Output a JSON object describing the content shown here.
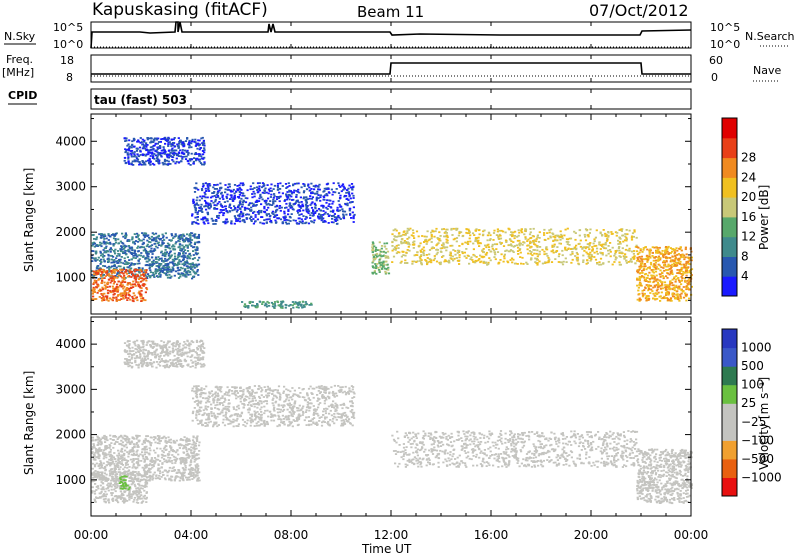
{
  "header": {
    "station": "Kapuskasing (fitACF)",
    "beam": "Beam 11",
    "date": "07/Oct/2012"
  },
  "strips": {
    "nsky_label": "N.Sky",
    "nsky_top": "10^5",
    "nsky_bottom": "10^0",
    "nsearch_label": "N.Search",
    "nsearch_top": "10^5",
    "nsearch_bottom": "10^0",
    "freq_label_1": "Freq.",
    "freq_label_2": "[MHz]",
    "freq_top": "18",
    "freq_bottom": "8",
    "nave_label": "Nave",
    "nave_top": "60",
    "nave_bottom": "0",
    "cpid_label": "CPID",
    "cpid_value": "tau (fast) 503"
  },
  "chart_data": [
    {
      "type": "heatmap",
      "title": "",
      "ylabel": "Slant Range [km]",
      "xlabel": "",
      "x_ticks": [
        "00:00",
        "04:00",
        "08:00",
        "12:00",
        "16:00",
        "20:00",
        "00:00"
      ],
      "y_ticks": [
        1000,
        2000,
        3000,
        4000
      ],
      "ylim": [
        200,
        4600
      ],
      "xlim_hours": [
        0,
        24
      ],
      "colorbar": {
        "label": "Power [dB]",
        "ticks": [
          4,
          8,
          12,
          16,
          20,
          24,
          28
        ],
        "colors": [
          "#1a1aff",
          "#2858b0",
          "#3f8a8c",
          "#57a86b",
          "#c8c878",
          "#f0c020",
          "#f08a20",
          "#e84018",
          "#e00000"
        ]
      },
      "regions": [
        {
          "name": "morning band",
          "t": [
            0.0,
            4.3
          ],
          "range_km": [
            1000,
            2000
          ],
          "power_db": 8
        },
        {
          "name": "near-range strong echoes",
          "t": [
            0.0,
            2.2
          ],
          "range_km": [
            500,
            1200
          ],
          "power_db": 28
        },
        {
          "name": "far echoes",
          "t": [
            1.3,
            4.5
          ],
          "range_km": [
            3500,
            4100
          ],
          "power_db": 4
        },
        {
          "name": "scattered mid echoes",
          "t": [
            4.0,
            10.5
          ],
          "range_km": [
            2200,
            3100
          ],
          "power_db": 4
        },
        {
          "name": "ground-level band",
          "t": [
            6.0,
            8.8
          ],
          "range_km": [
            350,
            500
          ],
          "power_db": 12
        },
        {
          "name": "pre-midday streak",
          "t": [
            11.2,
            11.9
          ],
          "range_km": [
            1100,
            1800
          ],
          "power_db": 16
        },
        {
          "name": "afternoon band",
          "t": [
            12.0,
            21.8
          ],
          "range_km": [
            1300,
            2100
          ],
          "power_db": 20
        },
        {
          "name": "evening blob",
          "t": [
            21.8,
            24.0
          ],
          "range_km": [
            500,
            1700
          ],
          "power_db": 24
        }
      ]
    },
    {
      "type": "heatmap",
      "title": "",
      "ylabel": "Slant Range [km]",
      "xlabel": "Time UT",
      "x_ticks": [
        "00:00",
        "04:00",
        "08:00",
        "12:00",
        "16:00",
        "20:00",
        "00:00"
      ],
      "y_ticks": [
        1000,
        2000,
        3000,
        4000
      ],
      "ylim": [
        200,
        4600
      ],
      "xlim_hours": [
        0,
        24
      ],
      "colorbar": {
        "label": "Velocity [m s⁻¹]",
        "ticks": [
          "1000",
          "500",
          "100",
          "25",
          "−25",
          "−100",
          "−500",
          "−1000"
        ],
        "colors": [
          "#2838c0",
          "#3a58c8",
          "#2e7a50",
          "#6ac040",
          "#c4c4c0",
          "#c4c4c0",
          "#f0a030",
          "#e86010",
          "#e81010"
        ]
      },
      "regions": [
        {
          "name": "morning band",
          "t": [
            0.0,
            4.3
          ],
          "range_km": [
            1000,
            2000
          ],
          "velocity": 0
        },
        {
          "name": "near-range echoes",
          "t": [
            0.0,
            2.2
          ],
          "range_km": [
            500,
            1200
          ],
          "velocity": 0
        },
        {
          "name": "green patch",
          "t": [
            1.1,
            1.5
          ],
          "range_km": [
            800,
            1100
          ],
          "velocity": 100
        },
        {
          "name": "far echoes",
          "t": [
            1.3,
            4.5
          ],
          "range_km": [
            3500,
            4100
          ],
          "velocity": 0
        },
        {
          "name": "scattered mid echoes",
          "t": [
            4.0,
            10.5
          ],
          "range_km": [
            2200,
            3100
          ],
          "velocity": 0
        },
        {
          "name": "afternoon band",
          "t": [
            12.0,
            21.8
          ],
          "range_km": [
            1300,
            2100
          ],
          "velocity": 0
        },
        {
          "name": "evening blob",
          "t": [
            21.8,
            24.0
          ],
          "range_km": [
            500,
            1700
          ],
          "velocity": 0
        }
      ]
    }
  ]
}
